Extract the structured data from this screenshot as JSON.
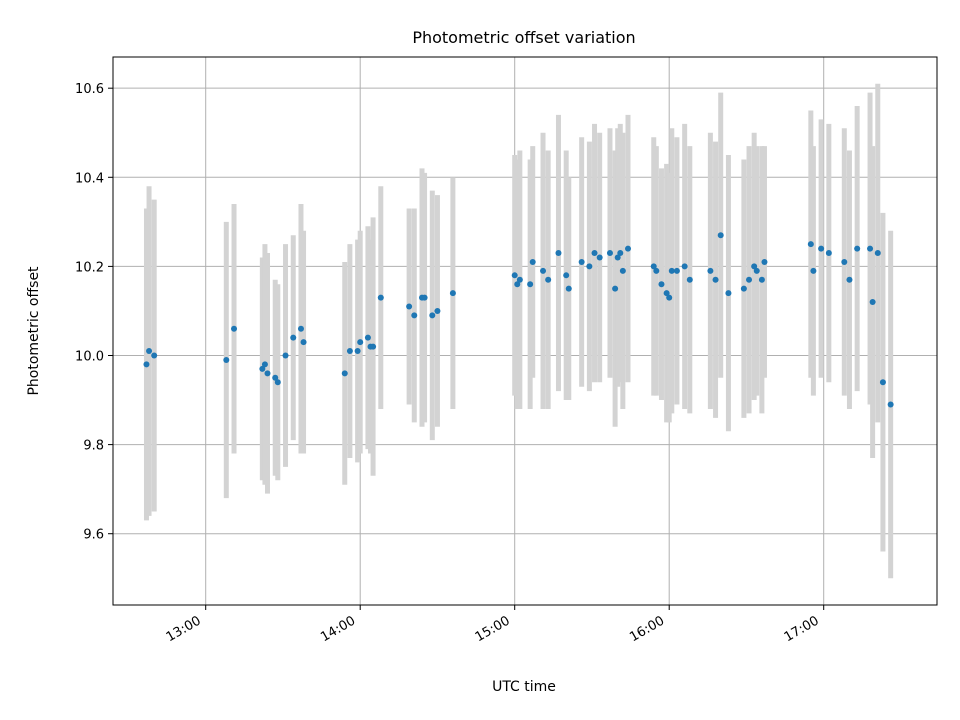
{
  "chart_data": {
    "type": "scatter",
    "title": "Photometric offset variation",
    "xlabel": "UTC time",
    "ylabel": "Photometric offset",
    "x_ticks": [
      "13:00",
      "14:00",
      "15:00",
      "16:00",
      "17:00"
    ],
    "y_ticks": [
      "9.6",
      "9.8",
      "10.0",
      "10.2",
      "10.4",
      "10.6"
    ],
    "xlim": [
      "12:24",
      "17:44"
    ],
    "ylim": [
      9.44,
      10.67
    ],
    "grid": true,
    "colors": {
      "point": "#1f77b4",
      "errorbar": "#d3d3d3",
      "grid": "#b0b0b0"
    },
    "series": [
      {
        "points": [
          {
            "x": "12:37",
            "y": 9.98,
            "err": 0.35
          },
          {
            "x": "12:38",
            "y": 10.01,
            "err": 0.37
          },
          {
            "x": "12:40",
            "y": 10.0,
            "err": 0.35
          },
          {
            "x": "13:08",
            "y": 9.99,
            "err": 0.31
          },
          {
            "x": "13:11",
            "y": 10.06,
            "err": 0.28
          },
          {
            "x": "13:22",
            "y": 9.97,
            "err": 0.25
          },
          {
            "x": "13:23",
            "y": 9.98,
            "err": 0.27
          },
          {
            "x": "13:24",
            "y": 9.96,
            "err": 0.27
          },
          {
            "x": "13:27",
            "y": 9.95,
            "err": 0.22
          },
          {
            "x": "13:28",
            "y": 9.94,
            "err": 0.22
          },
          {
            "x": "13:31",
            "y": 10.0,
            "err": 0.25
          },
          {
            "x": "13:34",
            "y": 10.04,
            "err": 0.23
          },
          {
            "x": "13:37",
            "y": 10.06,
            "err": 0.28
          },
          {
            "x": "13:38",
            "y": 10.03,
            "err": 0.25
          },
          {
            "x": "13:54",
            "y": 9.96,
            "err": 0.25
          },
          {
            "x": "13:56",
            "y": 10.01,
            "err": 0.24
          },
          {
            "x": "13:59",
            "y": 10.01,
            "err": 0.25
          },
          {
            "x": "14:00",
            "y": 10.03,
            "err": 0.25
          },
          {
            "x": "14:03",
            "y": 10.04,
            "err": 0.25
          },
          {
            "x": "14:04",
            "y": 10.02,
            "err": 0.24
          },
          {
            "x": "14:05",
            "y": 10.02,
            "err": 0.29
          },
          {
            "x": "14:08",
            "y": 10.13,
            "err": 0.25
          },
          {
            "x": "14:19",
            "y": 10.11,
            "err": 0.22
          },
          {
            "x": "14:21",
            "y": 10.09,
            "err": 0.24
          },
          {
            "x": "14:24",
            "y": 10.13,
            "err": 0.29
          },
          {
            "x": "14:25",
            "y": 10.13,
            "err": 0.28
          },
          {
            "x": "14:28",
            "y": 10.09,
            "err": 0.28
          },
          {
            "x": "14:30",
            "y": 10.1,
            "err": 0.26
          },
          {
            "x": "14:36",
            "y": 10.14,
            "err": 0.26
          },
          {
            "x": "15:00",
            "y": 10.18,
            "err": 0.27
          },
          {
            "x": "15:01",
            "y": 10.16,
            "err": 0.28
          },
          {
            "x": "15:02",
            "y": 10.17,
            "err": 0.29
          },
          {
            "x": "15:06",
            "y": 10.16,
            "err": 0.28
          },
          {
            "x": "15:07",
            "y": 10.21,
            "err": 0.26
          },
          {
            "x": "15:11",
            "y": 10.19,
            "err": 0.31
          },
          {
            "x": "15:13",
            "y": 10.17,
            "err": 0.29
          },
          {
            "x": "15:17",
            "y": 10.23,
            "err": 0.31
          },
          {
            "x": "15:20",
            "y": 10.18,
            "err": 0.28
          },
          {
            "x": "15:21",
            "y": 10.15,
            "err": 0.25
          },
          {
            "x": "15:26",
            "y": 10.21,
            "err": 0.28
          },
          {
            "x": "15:29",
            "y": 10.2,
            "err": 0.28
          },
          {
            "x": "15:31",
            "y": 10.23,
            "err": 0.29
          },
          {
            "x": "15:33",
            "y": 10.22,
            "err": 0.28
          },
          {
            "x": "15:37",
            "y": 10.23,
            "err": 0.28
          },
          {
            "x": "15:39",
            "y": 10.15,
            "err": 0.31
          },
          {
            "x": "15:40",
            "y": 10.22,
            "err": 0.29
          },
          {
            "x": "15:41",
            "y": 10.23,
            "err": 0.29
          },
          {
            "x": "15:42",
            "y": 10.19,
            "err": 0.31
          },
          {
            "x": "15:44",
            "y": 10.24,
            "err": 0.3
          },
          {
            "x": "15:54",
            "y": 10.2,
            "err": 0.29
          },
          {
            "x": "15:55",
            "y": 10.19,
            "err": 0.28
          },
          {
            "x": "15:57",
            "y": 10.16,
            "err": 0.26
          },
          {
            "x": "15:59",
            "y": 10.14,
            "err": 0.29
          },
          {
            "x": "16:00",
            "y": 10.13,
            "err": 0.28
          },
          {
            "x": "16:01",
            "y": 10.19,
            "err": 0.32
          },
          {
            "x": "16:03",
            "y": 10.19,
            "err": 0.3
          },
          {
            "x": "16:06",
            "y": 10.2,
            "err": 0.32
          },
          {
            "x": "16:08",
            "y": 10.17,
            "err": 0.3
          },
          {
            "x": "16:16",
            "y": 10.19,
            "err": 0.31
          },
          {
            "x": "16:18",
            "y": 10.17,
            "err": 0.31
          },
          {
            "x": "16:20",
            "y": 10.27,
            "err": 0.32
          },
          {
            "x": "16:23",
            "y": 10.14,
            "err": 0.31
          },
          {
            "x": "16:29",
            "y": 10.15,
            "err": 0.29
          },
          {
            "x": "16:31",
            "y": 10.17,
            "err": 0.3
          },
          {
            "x": "16:33",
            "y": 10.2,
            "err": 0.3
          },
          {
            "x": "16:34",
            "y": 10.19,
            "err": 0.28
          },
          {
            "x": "16:36",
            "y": 10.17,
            "err": 0.3
          },
          {
            "x": "16:37",
            "y": 10.21,
            "err": 0.26
          },
          {
            "x": "16:55",
            "y": 10.25,
            "err": 0.3
          },
          {
            "x": "16:56",
            "y": 10.19,
            "err": 0.28
          },
          {
            "x": "16:59",
            "y": 10.24,
            "err": 0.29
          },
          {
            "x": "17:02",
            "y": 10.23,
            "err": 0.29
          },
          {
            "x": "17:08",
            "y": 10.21,
            "err": 0.3
          },
          {
            "x": "17:10",
            "y": 10.17,
            "err": 0.29
          },
          {
            "x": "17:13",
            "y": 10.24,
            "err": 0.32
          },
          {
            "x": "17:18",
            "y": 10.24,
            "err": 0.35
          },
          {
            "x": "17:19",
            "y": 10.12,
            "err": 0.35
          },
          {
            "x": "17:21",
            "y": 10.23,
            "err": 0.38
          },
          {
            "x": "17:23",
            "y": 9.94,
            "err": 0.38
          },
          {
            "x": "17:26",
            "y": 9.89,
            "err": 0.39
          }
        ]
      }
    ]
  }
}
